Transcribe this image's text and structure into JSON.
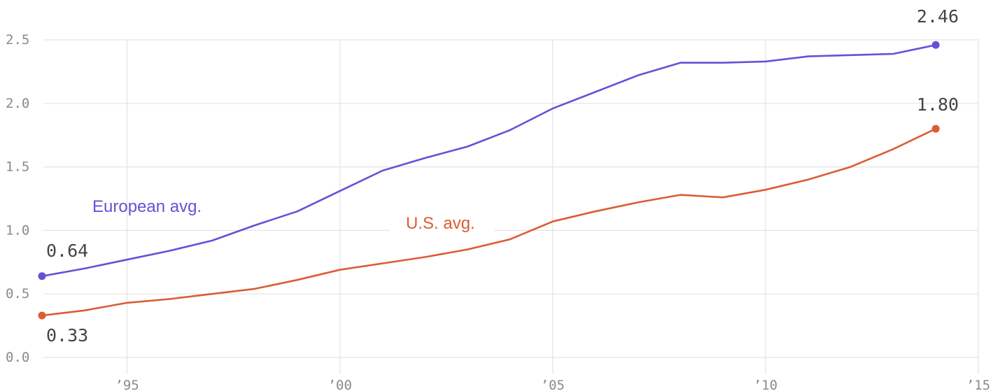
{
  "chart_data": {
    "type": "line",
    "title": "",
    "xlabel": "",
    "ylabel": "",
    "xlim": [
      1993,
      2015
    ],
    "ylim": [
      0,
      2.5
    ],
    "grid": true,
    "x_ticks": [
      1995,
      2000,
      2005,
      2010,
      2015
    ],
    "x_tick_labels": [
      "’95",
      "’00",
      "’05",
      "’10",
      "’15"
    ],
    "y_ticks": [
      0,
      0.5,
      1,
      1.5,
      2,
      2.5
    ],
    "y_tick_labels": [
      "0.0",
      "0.5",
      "1.0",
      "1.5",
      "2.0",
      "2.5"
    ],
    "series": [
      {
        "name": "European avg.",
        "color": "#6a4fd6",
        "x": [
          1993,
          1994,
          1995,
          1996,
          1997,
          1998,
          1999,
          2000,
          2001,
          2002,
          2003,
          2004,
          2005,
          2006,
          2007,
          2008,
          2009,
          2010,
          2011,
          2012,
          2013,
          2014
        ],
        "values": [
          0.64,
          0.7,
          0.77,
          0.84,
          0.92,
          1.04,
          1.15,
          1.31,
          1.47,
          1.57,
          1.66,
          1.79,
          1.96,
          2.09,
          2.22,
          2.32,
          2.32,
          2.33,
          2.37,
          2.38,
          2.39,
          2.46
        ],
        "start_label": "0.64",
        "end_label": "2.46"
      },
      {
        "name": "U.S. avg.",
        "color": "#dc5c35",
        "x": [
          1993,
          1994,
          1995,
          1996,
          1997,
          1998,
          1999,
          2000,
          2001,
          2002,
          2003,
          2004,
          2005,
          2006,
          2007,
          2008,
          2009,
          2010,
          2011,
          2012,
          2013,
          2014
        ],
        "values": [
          0.33,
          0.37,
          0.43,
          0.46,
          0.5,
          0.54,
          0.61,
          0.69,
          0.74,
          0.79,
          0.85,
          0.93,
          1.07,
          1.15,
          1.22,
          1.28,
          1.26,
          1.32,
          1.4,
          1.5,
          1.64,
          1.8
        ],
        "start_label": "0.33",
        "end_label": "1.80"
      }
    ]
  }
}
